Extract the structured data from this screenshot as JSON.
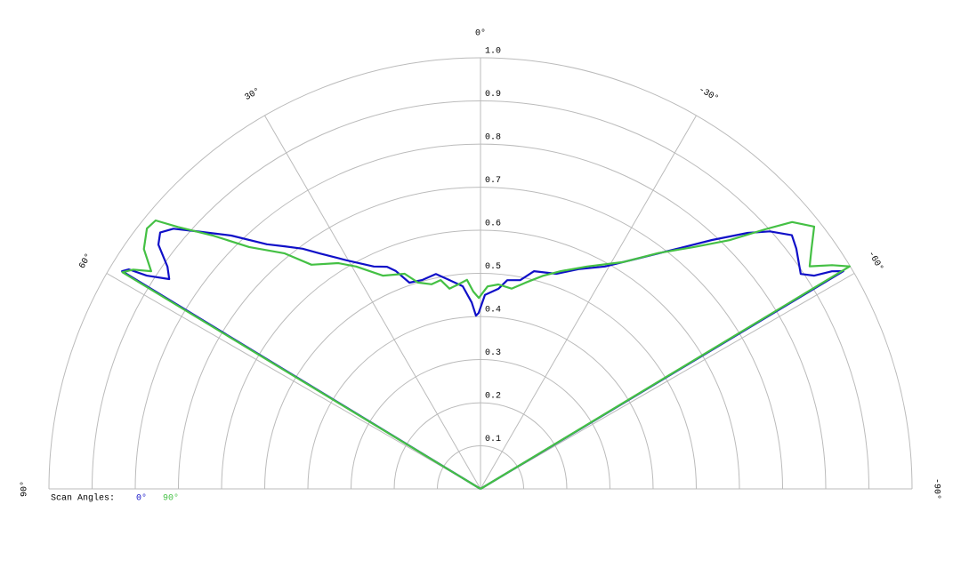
{
  "chart_data": {
    "type": "polar",
    "thetalim": [
      -90,
      90
    ],
    "thetaticks": [
      {
        "value": 90,
        "label": "90°"
      },
      {
        "value": 60,
        "label": "60°"
      },
      {
        "value": 30,
        "label": "30°"
      },
      {
        "value": 0,
        "label": "0°"
      },
      {
        "value": -30,
        "label": "-30°"
      },
      {
        "value": -60,
        "label": "-60°"
      },
      {
        "value": -90,
        "label": "-90°"
      }
    ],
    "rlim": [
      0,
      1
    ],
    "rticks": [
      0.1,
      0.2,
      0.3,
      0.4,
      0.5,
      0.6,
      0.7,
      0.8,
      0.9,
      {
        "value": 1,
        "label": "1.0"
      }
    ],
    "grid": true,
    "legend_title": "Scan Angles:",
    "series": [
      {
        "name": "0°",
        "color": "#1010c8",
        "x": [
          90,
          58.7,
          58.0,
          57.4,
          56.0,
          54.6,
          52.8,
          51.3,
          49.7,
          47.8,
          44.5,
          41.1,
          38.9,
          36.5,
          34.2,
          30.3,
          25.6,
          22.8,
          21.2,
          19.0,
          15.5,
          11.7,
          8.5,
          5.0,
          2.7,
          1.5,
          0.6,
          -1.3,
          -5.1,
          -7.3,
          -10.8,
          -13.8,
          -19.4,
          -24.0,
          -29.2,
          -34.7,
          -39.2,
          -42.9,
          -46.2,
          -48.3,
          -50.8,
          -52.7,
          -56.1,
          -57.4,
          -58.2,
          -59.0,
          -90
        ],
        "values": [
          0,
          0.972,
          0.961,
          0.918,
          0.87,
          0.89,
          0.937,
          0.951,
          0.933,
          0.89,
          0.824,
          0.753,
          0.723,
          0.693,
          0.66,
          0.614,
          0.572,
          0.559,
          0.542,
          0.506,
          0.503,
          0.509,
          0.49,
          0.472,
          0.433,
          0.402,
          0.408,
          0.45,
          0.466,
          0.488,
          0.493,
          0.52,
          0.529,
          0.558,
          0.591,
          0.652,
          0.718,
          0.788,
          0.858,
          0.898,
          0.931,
          0.92,
          0.894,
          0.918,
          0.958,
          0.981,
          0
        ]
      },
      {
        "name": "90°",
        "color": "#44c044",
        "x": [
          90,
          58.8,
          57.7,
          56.5,
          54.5,
          52.0,
          50.4,
          49.1,
          46.5,
          43.7,
          39.7,
          37.0,
          32.2,
          29.2,
          24.6,
          19.4,
          16.8,
          13.4,
          10.8,
          8.8,
          6.2,
          3.7,
          2.1,
          0.5,
          -2.0,
          -5.0,
          -8.8,
          -12.2,
          -16.3,
          -20.2,
          -25.6,
          -32.1,
          -37.0,
          -41.4,
          -45.0,
          -47.6,
          -49.4,
          -51.8,
          -54.0,
          -55.9,
          -57.5,
          -58.9,
          -90
        ],
        "values": [
          0,
          0.97,
          0.952,
          0.915,
          0.958,
          0.981,
          0.977,
          0.928,
          0.853,
          0.776,
          0.71,
          0.651,
          0.619,
          0.591,
          0.544,
          0.529,
          0.5,
          0.488,
          0.493,
          0.47,
          0.477,
          0.486,
          0.458,
          0.443,
          0.47,
          0.476,
          0.47,
          0.489,
          0.515,
          0.538,
          0.572,
          0.621,
          0.685,
          0.748,
          0.816,
          0.893,
          0.951,
          0.984,
          0.948,
          0.921,
          0.966,
          0.999,
          0
        ]
      }
    ]
  }
}
